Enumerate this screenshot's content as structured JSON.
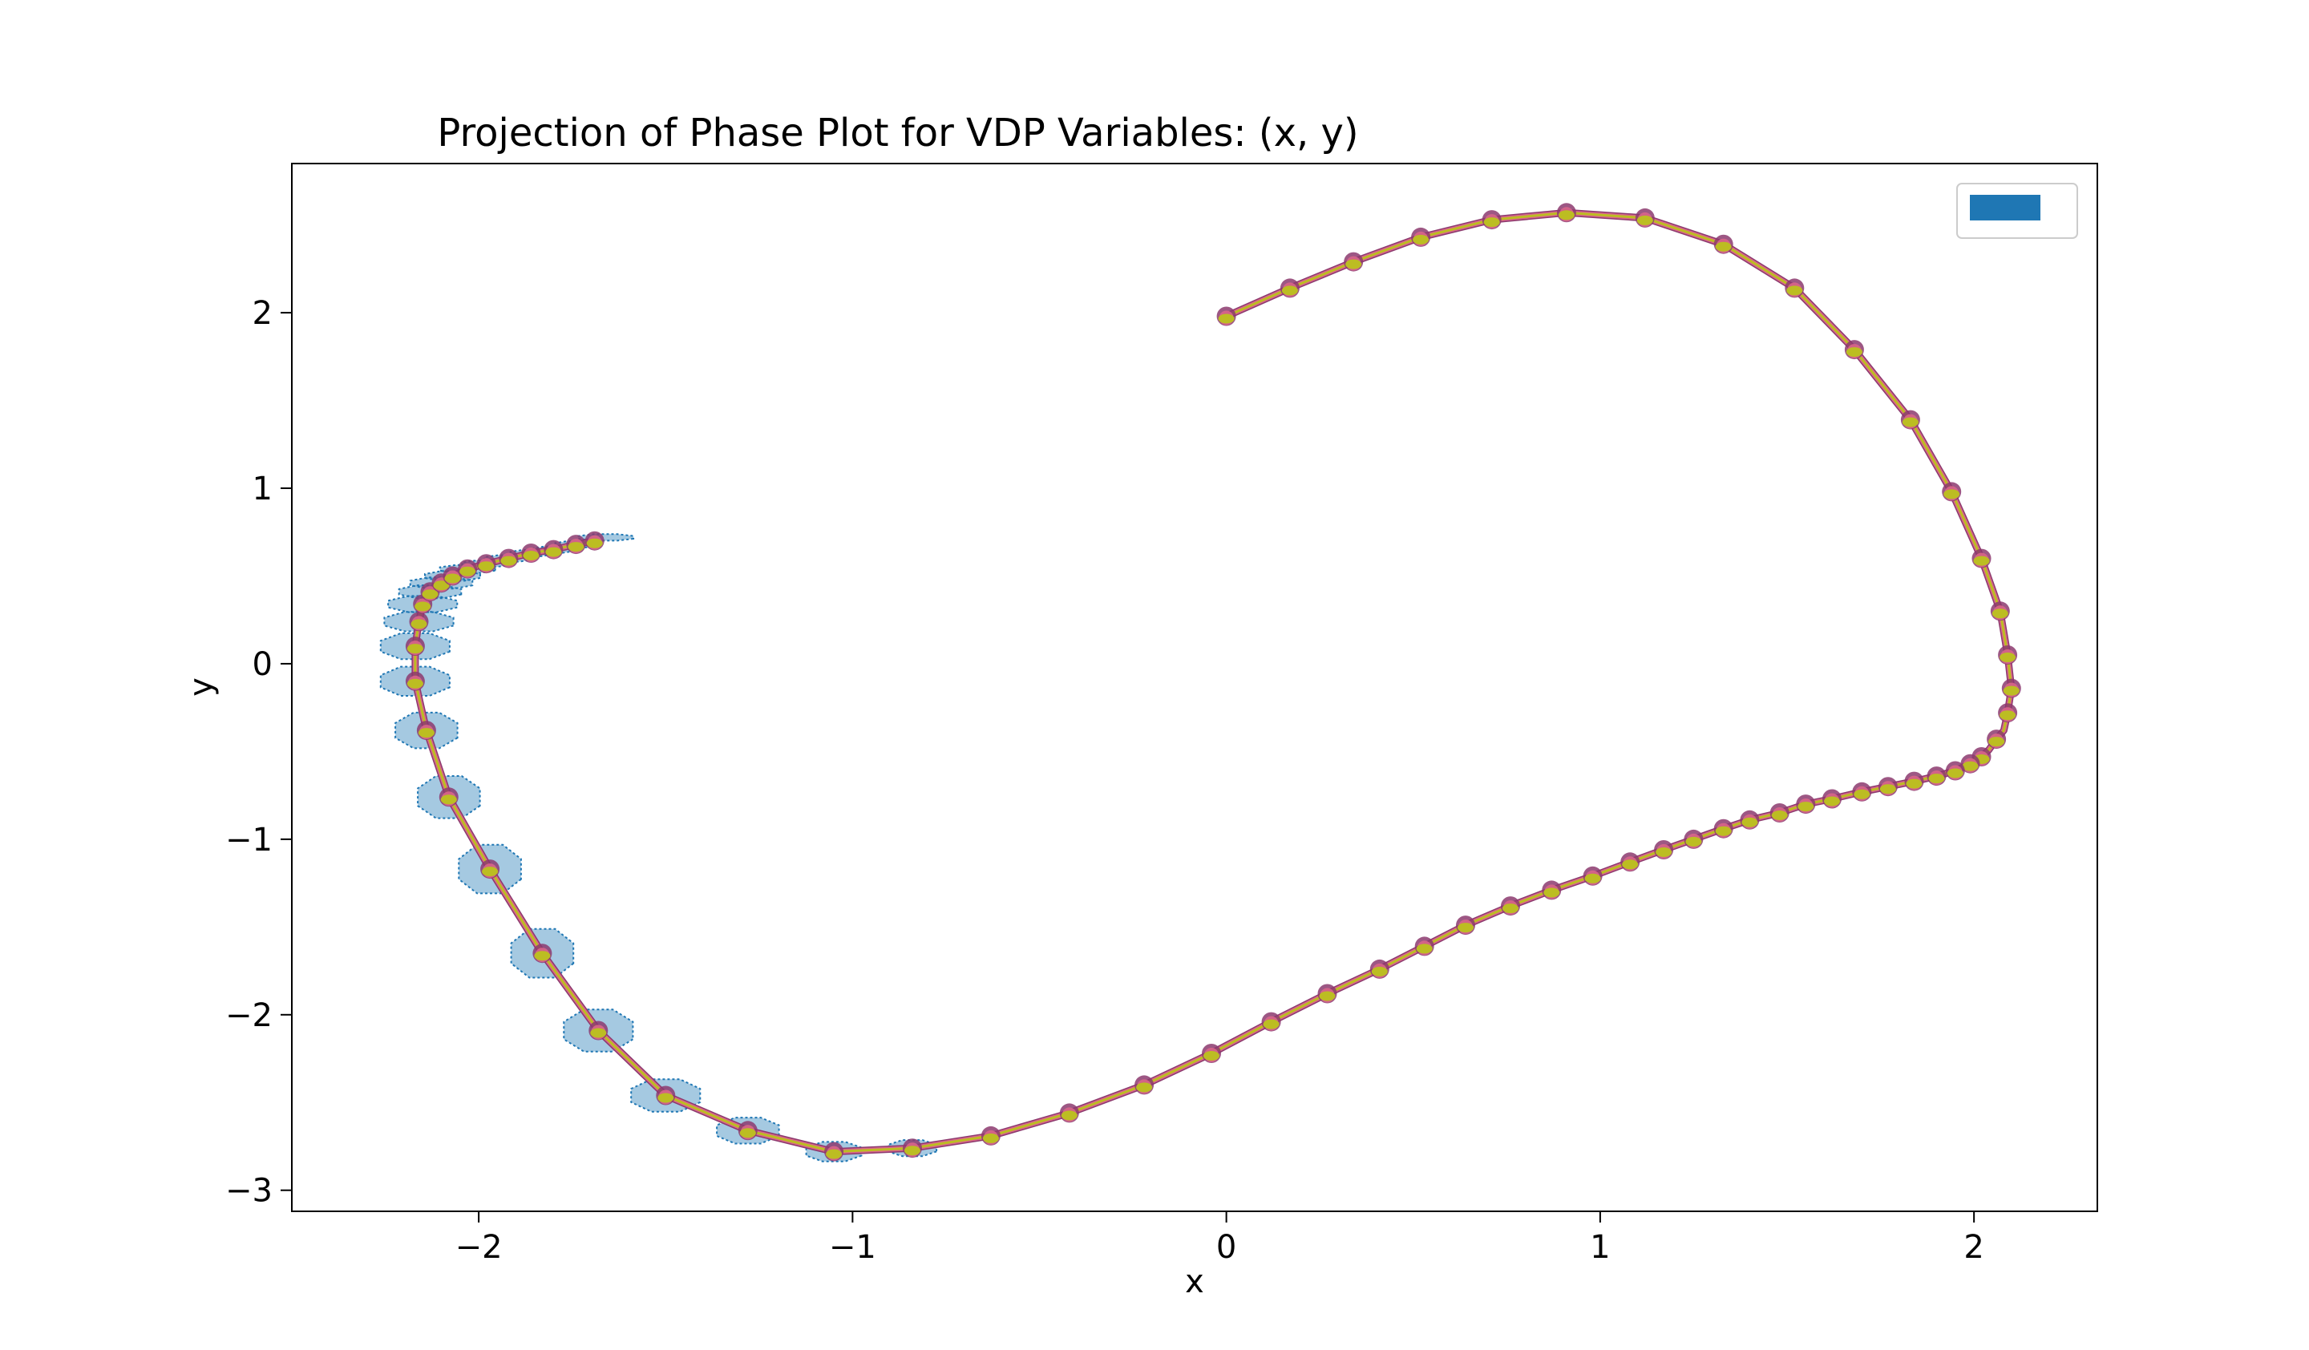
{
  "chart_data": {
    "type": "line",
    "title": "Projection of Phase Plot for VDP Variables: (x, y)",
    "xlabel": "x",
    "ylabel": "y",
    "xlim": [
      -2.5,
      2.33
    ],
    "ylim": [
      -3.12,
      2.85
    ],
    "xticks": [
      -2,
      -1,
      0,
      1,
      2
    ],
    "xtick_labels": [
      "−2",
      "−1",
      "0",
      "1",
      "2"
    ],
    "yticks": [
      -3,
      -2,
      -1,
      0,
      1,
      2
    ],
    "ytick_labels": [
      "−3",
      "−2",
      "−1",
      "0",
      "1",
      "2"
    ],
    "grid": false,
    "legend": {
      "placement": "upper right",
      "entries": [
        {
          "label": "",
          "color": "#1f77b4"
        }
      ]
    },
    "colors": {
      "reach_set_face": "#1f77b4",
      "reach_set_alpha": 0.4,
      "trajectory_outer": "#8c3a6e",
      "trajectory_mid": "#d9668a",
      "trajectory_inner": "#bcbd22"
    },
    "series": [
      {
        "x": [
          0.0,
          0.17,
          0.34,
          0.52,
          0.71,
          0.91,
          1.12,
          1.33,
          1.52,
          1.68,
          1.83,
          1.94,
          2.02,
          2.07,
          2.09,
          2.1,
          2.09,
          2.08,
          2.06,
          2.04,
          2.02,
          1.99,
          1.95,
          1.9,
          1.84,
          1.77,
          1.7,
          1.62,
          1.55,
          1.48,
          1.4,
          1.33,
          1.25,
          1.17,
          1.08,
          0.98,
          0.87,
          0.76,
          0.64,
          0.53,
          0.41,
          0.27,
          0.12,
          -0.04,
          -0.22,
          -0.42,
          -0.63,
          -0.84,
          -1.05,
          -1.28,
          -1.5,
          -1.68,
          -1.83,
          -1.97,
          -2.08,
          -2.14,
          -2.17,
          -2.17,
          -2.16,
          -2.15,
          -2.13,
          -2.1,
          -2.07,
          -2.03,
          -1.98,
          -1.92,
          -1.86,
          -1.8,
          -1.74,
          -1.69
        ],
        "y": [
          1.98,
          2.14,
          2.29,
          2.43,
          2.53,
          2.57,
          2.54,
          2.39,
          2.14,
          1.79,
          1.39,
          0.98,
          0.6,
          0.3,
          0.05,
          -0.14,
          -0.28,
          -0.38,
          -0.43,
          -0.49,
          -0.53,
          -0.57,
          -0.61,
          -0.64,
          -0.67,
          -0.7,
          -0.73,
          -0.77,
          -0.8,
          -0.85,
          -0.89,
          -0.94,
          -1.0,
          -1.06,
          -1.13,
          -1.21,
          -1.29,
          -1.38,
          -1.49,
          -1.61,
          -1.74,
          -1.88,
          -2.04,
          -2.22,
          -2.4,
          -2.56,
          -2.69,
          -2.76,
          -2.78,
          -2.66,
          -2.46,
          -2.09,
          -1.65,
          -1.17,
          -0.76,
          -0.38,
          -0.1,
          0.1,
          0.24,
          0.34,
          0.41,
          0.46,
          0.5,
          0.54,
          0.57,
          0.6,
          0.63,
          0.65,
          0.68,
          0.7
        ]
      }
    ],
    "markers": {
      "x": [
        0.0,
        0.17,
        0.34,
        0.52,
        0.71,
        0.91,
        1.12,
        1.33,
        1.52,
        1.68,
        1.83,
        1.94,
        2.02,
        2.07,
        2.09,
        2.1,
        2.09,
        2.06,
        2.02,
        1.99,
        1.95,
        1.9,
        1.84,
        1.77,
        1.7,
        1.62,
        1.55,
        1.48,
        1.4,
        1.33,
        1.25,
        1.17,
        1.08,
        0.98,
        0.87,
        0.76,
        0.64,
        0.53,
        0.41,
        0.27,
        0.12,
        -0.04,
        -0.22,
        -0.42,
        -0.63,
        -0.84,
        -1.05,
        -1.28,
        -1.5,
        -1.68,
        -1.83,
        -1.97,
        -2.08,
        -2.14,
        -2.17,
        -2.17,
        -2.16,
        -2.15,
        -2.13,
        -2.1,
        -2.07,
        -2.03,
        -1.98,
        -1.92,
        -1.86,
        -1.8,
        -1.74,
        -1.69
      ],
      "y": [
        1.98,
        2.14,
        2.29,
        2.43,
        2.53,
        2.57,
        2.54,
        2.39,
        2.14,
        1.79,
        1.39,
        0.98,
        0.6,
        0.3,
        0.05,
        -0.14,
        -0.28,
        -0.43,
        -0.53,
        -0.57,
        -0.61,
        -0.64,
        -0.67,
        -0.7,
        -0.73,
        -0.77,
        -0.8,
        -0.85,
        -0.89,
        -0.94,
        -1.0,
        -1.06,
        -1.13,
        -1.21,
        -1.29,
        -1.38,
        -1.49,
        -1.61,
        -1.74,
        -1.88,
        -2.04,
        -2.22,
        -2.4,
        -2.56,
        -2.69,
        -2.76,
        -2.78,
        -2.66,
        -2.46,
        -2.09,
        -1.65,
        -1.17,
        -0.76,
        -0.38,
        -0.1,
        0.1,
        0.24,
        0.34,
        0.41,
        0.46,
        0.5,
        0.54,
        0.57,
        0.6,
        0.63,
        0.65,
        0.68,
        0.7
      ]
    },
    "reach_sets": [
      {
        "cx": -0.84,
        "cy": -2.76,
        "rx": 0.07,
        "ry": 0.05
      },
      {
        "cx": -1.05,
        "cy": -2.78,
        "rx": 0.08,
        "ry": 0.06
      },
      {
        "cx": -1.28,
        "cy": -2.66,
        "rx": 0.09,
        "ry": 0.08
      },
      {
        "cx": -1.5,
        "cy": -2.46,
        "rx": 0.1,
        "ry": 0.1
      },
      {
        "cx": -1.68,
        "cy": -2.09,
        "rx": 0.1,
        "ry": 0.13
      },
      {
        "cx": -1.83,
        "cy": -1.65,
        "rx": 0.09,
        "ry": 0.15
      },
      {
        "cx": -1.97,
        "cy": -1.17,
        "rx": 0.09,
        "ry": 0.15
      },
      {
        "cx": -2.08,
        "cy": -0.76,
        "rx": 0.09,
        "ry": 0.13
      },
      {
        "cx": -2.14,
        "cy": -0.38,
        "rx": 0.09,
        "ry": 0.11
      },
      {
        "cx": -2.17,
        "cy": -0.1,
        "rx": 0.1,
        "ry": 0.09
      },
      {
        "cx": -2.17,
        "cy": 0.1,
        "rx": 0.1,
        "ry": 0.08
      },
      {
        "cx": -2.16,
        "cy": 0.24,
        "rx": 0.1,
        "ry": 0.06
      },
      {
        "cx": -2.15,
        "cy": 0.34,
        "rx": 0.1,
        "ry": 0.05
      },
      {
        "cx": -2.13,
        "cy": 0.41,
        "rx": 0.09,
        "ry": 0.04
      },
      {
        "cx": -2.1,
        "cy": 0.46,
        "rx": 0.09,
        "ry": 0.035
      },
      {
        "cx": -2.07,
        "cy": 0.5,
        "rx": 0.08,
        "ry": 0.03
      },
      {
        "cx": -2.03,
        "cy": 0.54,
        "rx": 0.08,
        "ry": 0.025
      },
      {
        "cx": -1.98,
        "cy": 0.57,
        "rx": 0.07,
        "ry": 0.02
      },
      {
        "cx": -1.92,
        "cy": 0.6,
        "rx": 0.07,
        "ry": 0.02
      },
      {
        "cx": -1.86,
        "cy": 0.63,
        "rx": 0.06,
        "ry": 0.02
      },
      {
        "cx": -1.8,
        "cy": 0.65,
        "rx": 0.06,
        "ry": 0.02
      },
      {
        "cx": -1.74,
        "cy": 0.68,
        "rx": 0.06,
        "ry": 0.02
      },
      {
        "cx": -1.66,
        "cy": 0.72,
        "rx": 0.08,
        "ry": 0.02
      }
    ]
  }
}
